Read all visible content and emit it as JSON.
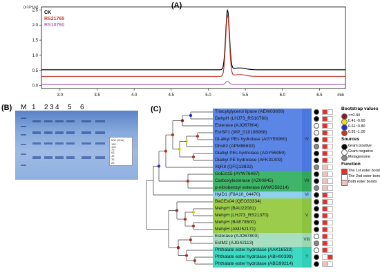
{
  "panels": {
    "a": "(A)",
    "b": "(B)",
    "c": "(C)"
  },
  "chart_data": {
    "type": "line",
    "y_unit": "(x10⁴uV)",
    "y_ticks": [
      "2.5",
      "2.0",
      "1.5",
      "1.0",
      "0.5",
      "0.0"
    ],
    "x_ticks": [
      "3.0",
      "3.5",
      "4.0",
      "4.5",
      "5.0",
      "5.5",
      "6.0",
      "6.5"
    ],
    "x_unit": "min",
    "xlim": [
      2.75,
      6.85
    ],
    "ylim": [
      -0.1,
      2.6
    ],
    "peak_x": 5.26,
    "series": [
      {
        "name": "CK",
        "color": "#000000",
        "baseline": 0.52,
        "peak": 2.5
      },
      {
        "name": "RS21765",
        "color": "#c0392b",
        "baseline": 0.3,
        "peak": 2.35
      },
      {
        "name": "RS10760",
        "color": "#b070c0",
        "baseline": 0.03,
        "peak": 0.14
      }
    ]
  },
  "gel": {
    "lane_labels": [
      "M",
      "1",
      "2",
      "3",
      "4",
      "5",
      "6"
    ],
    "mw_header": "MW (KDa)",
    "mw_values": [
      "180",
      "100",
      "75",
      "63",
      "48",
      "35",
      "25"
    ]
  },
  "tree": {
    "rows": [
      {
        "name": "Triacylglycerol lipase (AEW03609)",
        "fill": "#5b86e5",
        "dot": "#000000",
        "sq1": "#e03030",
        "sq2": "#ffffff"
      },
      {
        "name": "DehpH (LHJ73_RS10760)",
        "fill": "#5b86e5",
        "dot": "#000000",
        "sq1": "#e03030",
        "sq2": "#ffffff"
      },
      {
        "name": "Esterase (AJO67804)",
        "fill": "#5b86e5",
        "dot": "#ffffff",
        "sq1": "#e03030",
        "sq2": "#ffffff"
      },
      {
        "name": "EstSP1 (WP_010186968)",
        "fill": "#5b86e5",
        "dot": "#ffffff",
        "sq1": "#e03030",
        "sq2": "#ffffff"
      },
      {
        "name": "Di-alkyl PEs hydrolase (AGY55960)",
        "fill": "#5b86e5",
        "dot": "#000000",
        "sq1": "#e03030",
        "sq2": "#ffffff"
      },
      {
        "name": "Dhs82 (APM86632)",
        "fill": "#5b86e5",
        "dot": "#888888",
        "sq1": "#e03030",
        "sq2": "#ffffff"
      },
      {
        "name": "Dialkyl PEs hydrolase (AGY55959)",
        "fill": "#5b86e5",
        "dot": "#000000",
        "sq1": "#e03030",
        "sq2": "#ffffff"
      },
      {
        "name": "Dialkyl PE hydrolase (AFK31309)",
        "fill": "#5b86e5",
        "dot": "#000000",
        "sq1": "#e03030",
        "sq2": "#ffffff"
      },
      {
        "name": "XtjR8 (QFQ13832)",
        "fill": "#5b86e5",
        "dot": "#888888",
        "sq1": "#f3c0c0",
        "sq2": "#ffffff"
      },
      {
        "name": "GoEst15 (AYW76487)",
        "fill": "#3fb56a",
        "dot": "#000000",
        "sq1": "#f3c0c0",
        "sq2": "#ffffff"
      },
      {
        "name": "Carboxylesterase (AZ00845)",
        "fill": "#3fb56a",
        "dot": "#000000",
        "sq1": "#f3c0c0",
        "sq2": "#ffffff"
      },
      {
        "name": "p-nitrobenzyl esterase (WWO58214)",
        "fill": "#3fb56a",
        "dot": "#888888",
        "sq1": "#f3c0c0",
        "sq2": "#ffffff"
      },
      {
        "name": "HylD1 (F8A10_04470)",
        "fill": "#8fd0ee",
        "dot": "#000000",
        "sq1": "#e03030",
        "sq2": "#ffffff"
      },
      {
        "name": "BaCEs04 (QEO33334)",
        "fill": "#9ccc4c",
        "dot": "#000000",
        "sq1": "#e03030",
        "sq2": "#ffffff"
      },
      {
        "name": "MehpH (BAU22081)",
        "fill": "#9ccc4c",
        "dot": "#000000",
        "sq1": "#e03030",
        "sq2": "#ffffff"
      },
      {
        "name": "MehpH (LHJ73_RS21370)",
        "fill": "#9ccc4c",
        "dot": "#000000",
        "sq1": "#e03030",
        "sq2": "#ffffff"
      },
      {
        "name": "MehpH (BAE78500)",
        "fill": "#9ccc4c",
        "dot": "#000000",
        "sq1": "#e03030",
        "sq2": "#ffffff"
      },
      {
        "name": "MehpH (AMJ52171)",
        "fill": "#9ccc4c",
        "dot": "#000000",
        "sq1": "#e03030",
        "sq2": "#ffffff"
      },
      {
        "name": "Esterase (AJO67803)",
        "fill": "#a8dfc0",
        "dot": "#ffffff",
        "sq1": "#e03030",
        "sq2": "#ffffff"
      },
      {
        "name": "EstM2 (AJG42113)",
        "fill": "#a8dfc0",
        "dot": "#888888",
        "sq1": "#e03030",
        "sq2": "#ffffff"
      },
      {
        "name": "Phthalate ester hydrolase (AAK16532)",
        "fill": "#3dd9c3",
        "dot": "#ffffff",
        "sq1": "#e03030",
        "sq2": "#ffffff"
      },
      {
        "name": "Phthalate ester hydrolase (ABH00399)",
        "fill": "#3dd9c3",
        "dot": "#000000",
        "sq1": "#ffffff",
        "sq2": "#e03030"
      },
      {
        "name": "Phthalate ester hydrolase (ABG99214)",
        "fill": "#3dd9c3",
        "dot": "#000000",
        "sq1": "#f3c0c0",
        "sq2": "#ffffff"
      }
    ],
    "clades": [
      {
        "label": "IV",
        "color": "#4a78e0",
        "from": 0,
        "to": 8
      },
      {
        "label": "VII",
        "color": "#2fa85a",
        "from": 9,
        "to": 11
      },
      {
        "label": "VI",
        "color": "#7cc4e8",
        "from": 12,
        "to": 12
      },
      {
        "label": "V",
        "color": "#8cc440",
        "from": 13,
        "to": 17
      },
      {
        "label": "VIII",
        "color": "#98d8b2",
        "from": 18,
        "to": 19
      },
      {
        "label": "?",
        "color": "#30d0b8",
        "from": 20,
        "to": 22
      }
    ]
  },
  "legend": {
    "bootstrap_title": "Bootstrap values",
    "bootstrap_items": [
      {
        "label": "<=0.40",
        "color": "#8b1a1a"
      },
      {
        "label": "0.41~0.60",
        "color": "#e8e020"
      },
      {
        "label": "0.61~0.80",
        "color": "#2030d0"
      },
      {
        "label": "0.81~1.00",
        "color": "#c0392b"
      }
    ],
    "sources_title": "Sources",
    "sources_items": [
      {
        "label": "Gram positive",
        "color": "#000000"
      },
      {
        "label": "Gram negative",
        "color": "#ffffff"
      },
      {
        "label": "Metagenome",
        "color": "#888888"
      }
    ],
    "function_title": "Function",
    "function_items": [
      {
        "label": "The 1st ester bond",
        "color": "#e03030"
      },
      {
        "label": "The 2nd ester bond",
        "color": "#ffffff"
      },
      {
        "label": "Both ester bonds",
        "color": "#f3c0c0"
      }
    ]
  }
}
